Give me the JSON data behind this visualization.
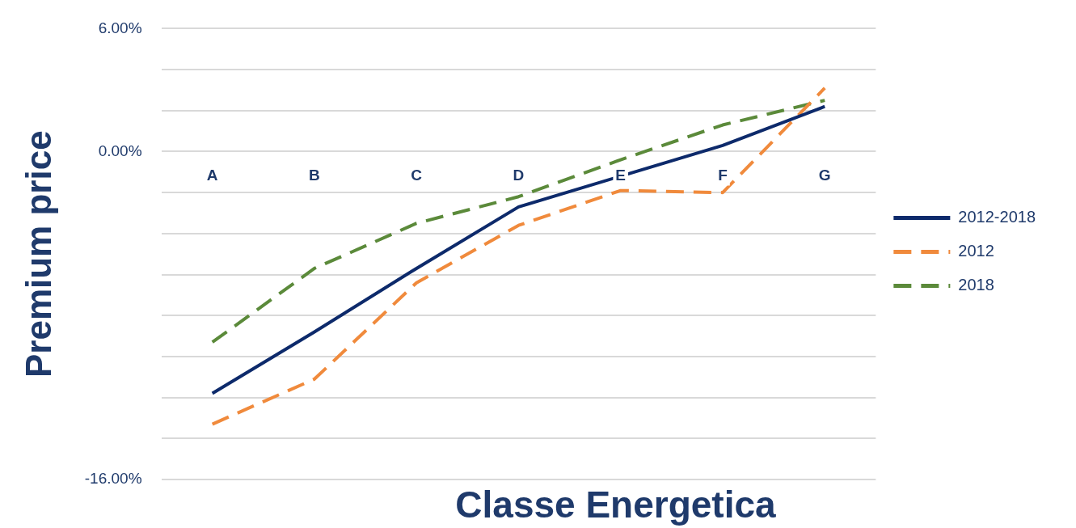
{
  "chart_data": {
    "type": "line",
    "xlabel": "Classe Energetica",
    "ylabel": "Premium price",
    "categories": [
      "A",
      "B",
      "C",
      "D",
      "E",
      "F",
      "G"
    ],
    "series": [
      {
        "name": "2012-2018",
        "color": "#0d2a6b",
        "line_style": "solid",
        "values": [
          -11.8,
          -8.8,
          -5.7,
          -2.7,
          -1.2,
          0.3,
          2.2
        ]
      },
      {
        "name": "2012",
        "color": "#f08a3c",
        "line_style": "dashed",
        "values": [
          -13.3,
          -11.1,
          -6.4,
          -3.6,
          -1.9,
          -2.0,
          3.1
        ]
      },
      {
        "name": "2018",
        "color": "#5b8a3a",
        "line_style": "dashed",
        "values": [
          -9.3,
          -5.7,
          -3.5,
          -2.2,
          -0.4,
          1.3,
          2.5
        ]
      }
    ],
    "ylim": [
      -16,
      6
    ],
    "yticks": [
      {
        "value": 6,
        "label": "6.00%"
      },
      {
        "value": 4,
        "label": null
      },
      {
        "value": 2,
        "label": null
      },
      {
        "value": 0,
        "label": "0.00%"
      },
      {
        "value": -2,
        "label": null
      },
      {
        "value": -4,
        "label": null
      },
      {
        "value": -6,
        "label": null
      },
      {
        "value": -8,
        "label": null
      },
      {
        "value": -10,
        "label": null
      },
      {
        "value": -12,
        "label": null
      },
      {
        "value": -14,
        "label": null
      },
      {
        "value": -16,
        "label": "-16.00%"
      }
    ],
    "grid": "y",
    "legend": "right",
    "marker": "none"
  }
}
